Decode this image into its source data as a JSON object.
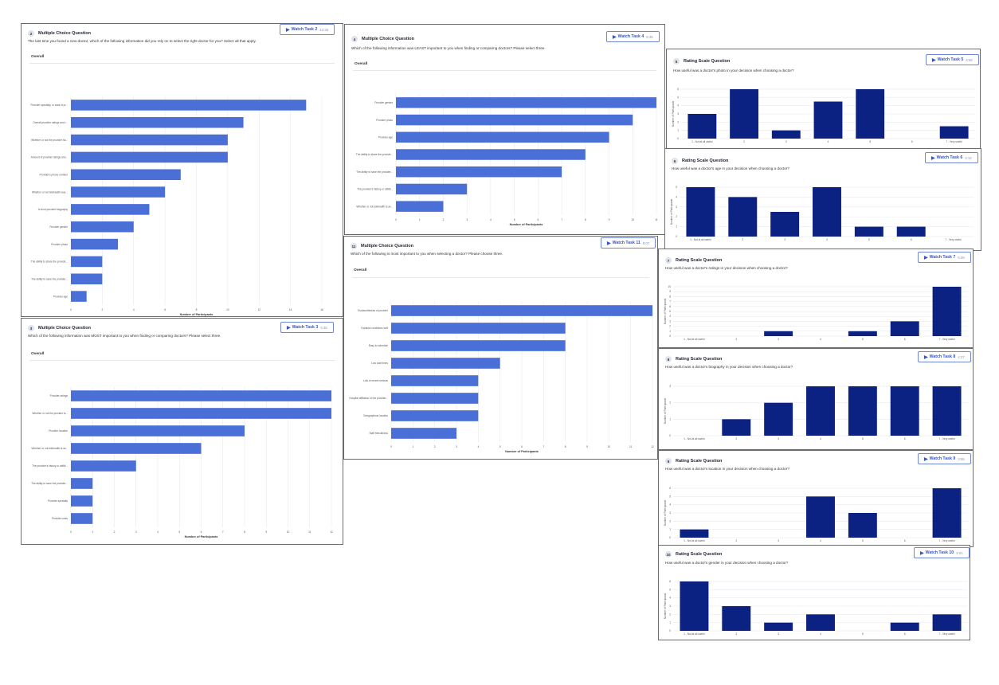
{
  "colors": {
    "hbar": "#4a6fd6",
    "vbar": "#0b2282",
    "grid": "#e4e6ec"
  },
  "mc": [
    {
      "id": "q2",
      "num": "2",
      "type": "Multiple Choice Question",
      "question": "The last time you found a new doctor, which of the following information did you rely on to select the right doctor for you? Select all that apply.",
      "overall": "Overall",
      "watch": {
        "label": "Watch Task 2",
        "duration": "12:35"
      },
      "chart_data": {
        "type": "bar",
        "orientation": "horizontal",
        "categories": [
          "Provider specialty, or area of pr...",
          "Overall provider ratings and r...",
          "Whether or not the provider ha...",
          "Amount of provider ratings and...",
          "Provider's phone number",
          "Whether or not telehealth was...",
          "A short provider biography",
          "Provider gender",
          "Provider photo",
          "The ability to share the provide...",
          "The ability to save the provider...",
          "Provider age"
        ],
        "values": [
          15,
          11,
          10,
          10,
          7,
          6,
          5,
          4,
          3,
          2,
          2,
          1
        ],
        "xlim": [
          0,
          16
        ],
        "xticks": [
          "0",
          "2",
          "4",
          "6",
          "8",
          "10",
          "12",
          "14",
          "16"
        ],
        "xlabel": "Number of Participants",
        "ylabel": ""
      }
    },
    {
      "id": "q3",
      "num": "3",
      "type": "Multiple Choice Question",
      "question": "Which of the following information was MOST important to you when finding or comparing doctors? Please select three.",
      "overall": "Overall",
      "watch": {
        "label": "Watch Task 3",
        "duration": "6:45"
      },
      "chart_data": {
        "type": "bar",
        "orientation": "horizontal",
        "categories": [
          "Provider ratings",
          "Whether or not the provider is...",
          "Provider location",
          "Whether or not telehealth is av...",
          "The provider's history or abiliti...",
          "The ability to save the provider...",
          "Provider specialty",
          "Provider costs"
        ],
        "values": [
          12,
          12,
          8,
          6,
          3,
          1,
          1,
          1
        ],
        "xlim": [
          0,
          12
        ],
        "xticks": [
          "0",
          "1",
          "2",
          "3",
          "4",
          "5",
          "6",
          "7",
          "8",
          "9",
          "10",
          "11",
          "12"
        ],
        "xlabel": "Number of Participants",
        "ylabel": ""
      }
    },
    {
      "id": "q4",
      "num": "4",
      "type": "Multiple Choice Question",
      "question": "Which of the following information was LEAST important to you when finding or comparing doctors? Please select three.",
      "overall": "Overall",
      "watch": {
        "label": "Watch Task 4",
        "duration": "5:35"
      },
      "chart_data": {
        "type": "bar",
        "orientation": "horizontal",
        "categories": [
          "Provider gender",
          "Provider photo",
          "Provider age",
          "The ability to share the provide...",
          "The ability to save the provider...",
          "The provider's history or abiliti...",
          "Whether or not telehealth is av..."
        ],
        "values": [
          11,
          10,
          9,
          8,
          7,
          3,
          2
        ],
        "xlim": [
          0,
          11
        ],
        "xticks": [
          "0",
          "1",
          "2",
          "3",
          "4",
          "5",
          "6",
          "7",
          "8",
          "9",
          "10",
          "11"
        ],
        "xlabel": "Number of Participants",
        "ylabel": ""
      }
    },
    {
      "id": "q11",
      "num": "11",
      "type": "Multiple Choice Question",
      "question": "Which of the following is most important to you when selecting a doctor? Please choose three.",
      "overall": "Overall",
      "watch": {
        "label": "Watch Task 11",
        "duration": "8:07"
      },
      "chart_data": {
        "type": "bar",
        "orientation": "horizontal",
        "categories": [
          "Trustworthiness of provider",
          "Explains conditions well",
          "Easy to schedule",
          "Low wait times",
          "Lots of recent reviews",
          "Hospital affiliation of the provider...",
          "Geographical location",
          "Staff friendliness"
        ],
        "values": [
          12,
          8,
          8,
          5,
          4,
          4,
          4,
          3
        ],
        "xlim": [
          0,
          12
        ],
        "xticks": [
          "0",
          "1",
          "2",
          "3",
          "4",
          "5",
          "6",
          "7",
          "8",
          "9",
          "10",
          "11",
          "12"
        ],
        "xlabel": "Number of Participants",
        "ylabel": ""
      }
    }
  ],
  "rs": [
    {
      "id": "q5",
      "num": "5",
      "type": "Rating Scale Question",
      "question": "How useful was a doctor's photo in your decision when choosing a doctor?",
      "watch": {
        "label": "Watch Task 5",
        "duration": "4:08"
      },
      "chart_data": {
        "type": "bar",
        "categories": [
          "1 - Not at all useful",
          "2",
          "3",
          "4",
          "5",
          "6",
          "7 - Very useful"
        ],
        "values": [
          3,
          6,
          1,
          4.5,
          6,
          0,
          1.5
        ],
        "ylim": [
          0,
          6
        ],
        "yticks": [
          "0",
          "1",
          "2",
          "3",
          "4",
          "5",
          "6"
        ],
        "xlabel": "",
        "ylabel": "Number of Participants"
      }
    },
    {
      "id": "q6",
      "num": "6",
      "type": "Rating Scale Question",
      "question": "How useful was a doctor's age in your decision when choosing a doctor?",
      "watch": {
        "label": "Watch Task 6",
        "duration": "4:12"
      },
      "chart_data": {
        "type": "bar",
        "categories": [
          "1 - Not at all useful",
          "2",
          "3",
          "4",
          "5",
          "6",
          "7 - Very useful"
        ],
        "values": [
          5,
          4,
          2.5,
          5,
          1,
          1,
          0
        ],
        "ylim": [
          0,
          5
        ],
        "yticks": [
          "0",
          "1",
          "2",
          "3",
          "4",
          "5"
        ],
        "xlabel": "",
        "ylabel": "Number of Participants"
      }
    },
    {
      "id": "q7",
      "num": "7",
      "type": "Rating Scale Question",
      "question": "How useful was a doctor's ratings in your decision when choosing a doctor?",
      "watch": {
        "label": "Watch Task 7",
        "duration": "5:39"
      },
      "chart_data": {
        "type": "bar",
        "categories": [
          "1 - Not at all useful",
          "2",
          "3",
          "4",
          "5",
          "6",
          "7 - Very useful"
        ],
        "values": [
          0,
          0,
          1,
          0,
          1,
          3,
          10
        ],
        "ylim": [
          0,
          10
        ],
        "yticks": [
          "0",
          "1",
          "2",
          "3",
          "4",
          "5",
          "6",
          "7",
          "8",
          "9",
          "10"
        ],
        "xlabel": "",
        "ylabel": "Number of Participants"
      }
    },
    {
      "id": "q8",
      "num": "8",
      "type": "Rating Scale Question",
      "question": "How useful was a doctor's biography in your decision when choosing a doctor?",
      "watch": {
        "label": "Watch Task 8",
        "duration": "4:27"
      },
      "chart_data": {
        "type": "bar",
        "categories": [
          "1 - Not at all useful",
          "2",
          "3",
          "4",
          "5",
          "6",
          "7 - Very useful"
        ],
        "values": [
          0,
          1,
          2,
          3,
          3,
          3,
          3
        ],
        "ylim": [
          0,
          3
        ],
        "yticks": [
          "0",
          "1",
          "2",
          "3"
        ],
        "xlabel": "",
        "ylabel": "Number of Participants"
      }
    },
    {
      "id": "q9",
      "num": "9",
      "type": "Rating Scale Question",
      "question": "How useful was a doctor's location in your decision when choosing a doctor?",
      "watch": {
        "label": "Watch Task 9",
        "duration": "3:55"
      },
      "chart_data": {
        "type": "bar",
        "categories": [
          "1 - Not at all useful",
          "2",
          "3",
          "4",
          "5",
          "6",
          "7 - Very useful"
        ],
        "values": [
          1,
          0,
          0,
          5,
          3,
          0,
          6
        ],
        "ylim": [
          0,
          6
        ],
        "yticks": [
          "0",
          "1",
          "2",
          "3",
          "4",
          "5",
          "6"
        ],
        "xlabel": "",
        "ylabel": "Number of Participants"
      }
    },
    {
      "id": "q10",
      "num": "10",
      "type": "Rating Scale Question",
      "question": "How useful was a doctor's gender in your decision when choosing a doctor?",
      "watch": {
        "label": "Watch Task 10",
        "duration": "4:01"
      },
      "chart_data": {
        "type": "bar",
        "categories": [
          "1 - Not at all useful",
          "2",
          "3",
          "4",
          "5",
          "6",
          "7 - Very useful"
        ],
        "values": [
          6,
          3,
          1,
          2,
          0,
          1,
          2
        ],
        "ylim": [
          0,
          6
        ],
        "yticks": [
          "0",
          "1",
          "2",
          "3",
          "4",
          "5",
          "6"
        ],
        "xlabel": "",
        "ylabel": "Number of Participants"
      }
    }
  ]
}
